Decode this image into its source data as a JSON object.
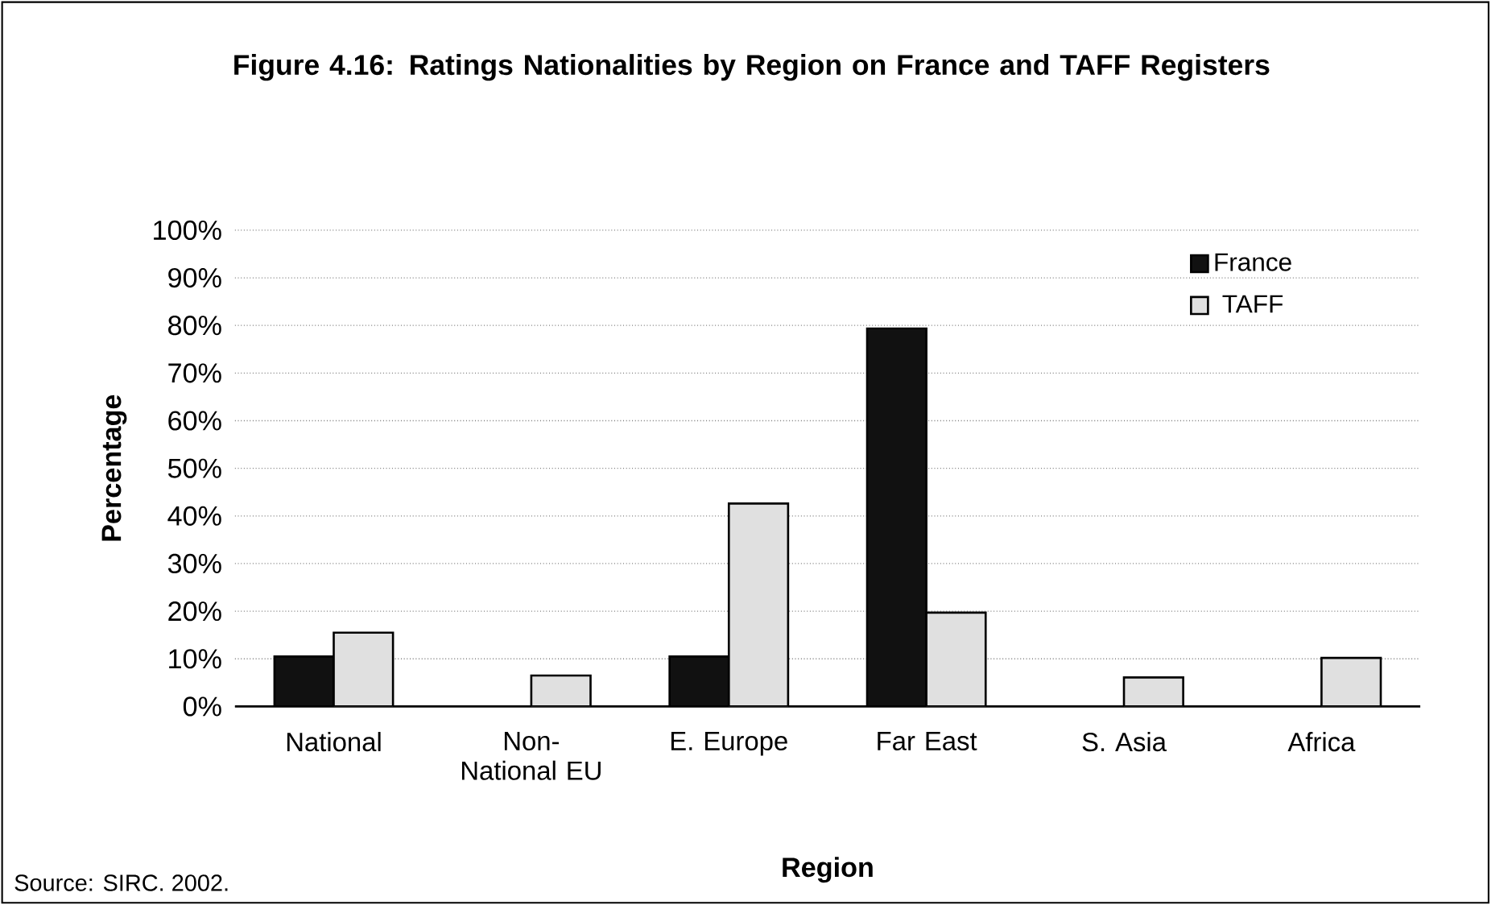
{
  "chart_data": {
    "type": "bar",
    "title": "Figure 4.16: Ratings Nationalities by Region on France and TAFF Registers",
    "categories": [
      "National",
      "Non-National EU",
      "E. Europe",
      "Far East",
      "S. Asia",
      "Africa"
    ],
    "series": [
      {
        "name": "France",
        "color": "#111111",
        "values": [
          10.5,
          null,
          10.5,
          79.4,
          null,
          null
        ]
      },
      {
        "name": "TAFF",
        "color": "#e0e0e0",
        "values": [
          15.5,
          6.5,
          42.6,
          19.7,
          6.1,
          10.2
        ]
      }
    ],
    "xlabel": "Region",
    "ylabel": "Percentage",
    "ylim": [
      0,
      100
    ],
    "yticks": [
      {
        "value": 0,
        "label": "0%"
      },
      {
        "value": 10,
        "label": "10%"
      },
      {
        "value": 20,
        "label": "20%"
      },
      {
        "value": 30,
        "label": "30%"
      },
      {
        "value": 40,
        "label": "40%"
      },
      {
        "value": 50,
        "label": "50%"
      },
      {
        "value": 60,
        "label": "60%"
      },
      {
        "value": 70,
        "label": "70%"
      },
      {
        "value": 80,
        "label": "80%"
      },
      {
        "value": 90,
        "label": "90%"
      },
      {
        "value": 100,
        "label": "100%"
      }
    ],
    "grid": "y",
    "legend": "top right",
    "annotations": [
      "Source: SIRC. 2002."
    ]
  }
}
